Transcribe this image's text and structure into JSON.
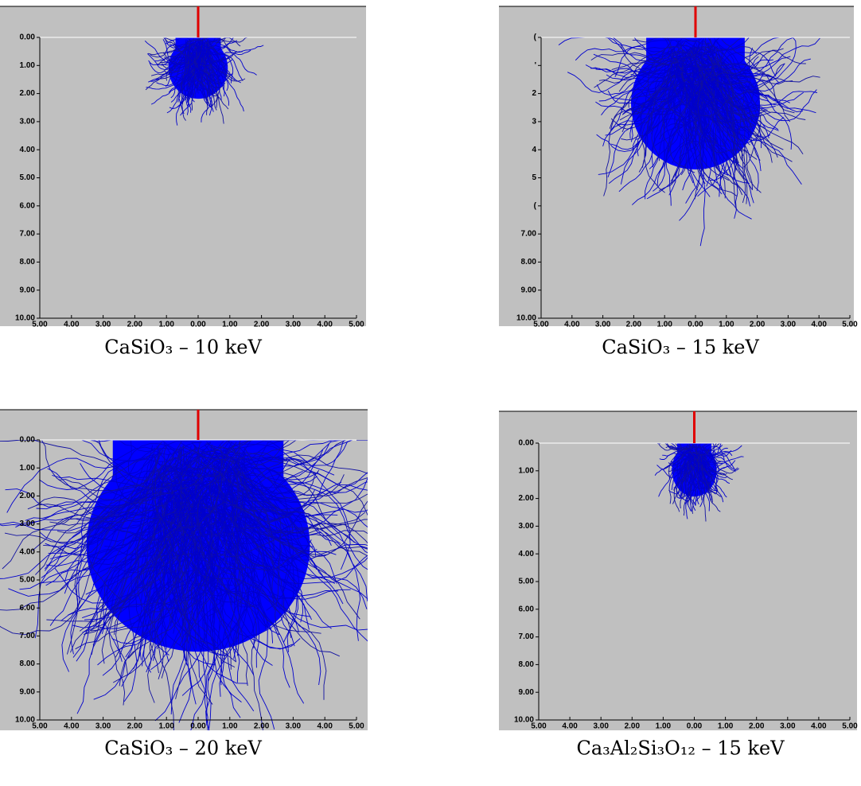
{
  "chart_data": [
    {
      "type": "trajectory",
      "caption": "CaSiO₃ – 10 keV",
      "xlim": [
        -5,
        5
      ],
      "xticks": [
        {
          "value": -5,
          "label": "5.00"
        },
        {
          "value": -4,
          "label": "4.00"
        },
        {
          "value": -3,
          "label": "3.00"
        },
        {
          "value": -2,
          "label": "2.00"
        },
        {
          "value": -1,
          "label": "1.00"
        },
        {
          "value": 0,
          "label": "0.00"
        },
        {
          "value": 1,
          "label": "1.00"
        },
        {
          "value": 2,
          "label": "2.00"
        },
        {
          "value": 3,
          "label": "3.00"
        },
        {
          "value": 4,
          "label": "4.00"
        },
        {
          "value": 5,
          "label": "5.00"
        }
      ],
      "ylim": [
        0,
        10
      ],
      "yticks": [
        {
          "value": 0,
          "label": "0.00"
        },
        {
          "value": 1,
          "label": "1.00"
        },
        {
          "value": 2,
          "label": "2.00"
        },
        {
          "value": 3,
          "label": "3.00"
        },
        {
          "value": 4,
          "label": "4.00"
        },
        {
          "value": 5,
          "label": "5.00"
        },
        {
          "value": 6,
          "label": "6.00"
        },
        {
          "value": 7,
          "label": "7.00"
        },
        {
          "value": 8,
          "label": "8.00"
        },
        {
          "value": 9,
          "label": "9.00"
        },
        {
          "value": 10,
          "label": "10.00"
        }
      ]
    },
    {
      "type": "trajectory",
      "caption": "CaSiO₃ – 15 keV",
      "xlim": [
        -5,
        5
      ],
      "xticks": [
        {
          "value": -5,
          "label": "5.00"
        },
        {
          "value": -4,
          "label": "4.00"
        },
        {
          "value": -3,
          "label": "3.00"
        },
        {
          "value": -2,
          "label": "2.00"
        },
        {
          "value": -1,
          "label": "1.00"
        },
        {
          "value": 0,
          "label": "0.00"
        },
        {
          "value": 1,
          "label": "1.00"
        },
        {
          "value": 2,
          "label": "2.00"
        },
        {
          "value": 3,
          "label": "3.00"
        },
        {
          "value": 4,
          "label": "4.00"
        },
        {
          "value": 5,
          "label": "5.00"
        }
      ],
      "ylim": [
        0,
        10
      ],
      "yticks": [
        {
          "value": 0,
          "label": "("
        },
        {
          "value": 1,
          "label": "'"
        },
        {
          "value": 2,
          "label": "2"
        },
        {
          "value": 3,
          "label": "3"
        },
        {
          "value": 4,
          "label": "4"
        },
        {
          "value": 5,
          "label": "5"
        },
        {
          "value": 6,
          "label": "("
        },
        {
          "value": 7,
          "label": "7.00"
        },
        {
          "value": 8,
          "label": "8.00"
        },
        {
          "value": 9,
          "label": "9.00"
        },
        {
          "value": 10,
          "label": "10.00"
        }
      ]
    },
    {
      "type": "trajectory",
      "caption": "CaSiO₃ – 20 keV",
      "xlim": [
        -5,
        5
      ],
      "xticks": [
        {
          "value": -5,
          "label": "5.00"
        },
        {
          "value": -4,
          "label": "4.00"
        },
        {
          "value": -3,
          "label": "3.00"
        },
        {
          "value": -2,
          "label": "2.00"
        },
        {
          "value": -1,
          "label": "1.00"
        },
        {
          "value": 0,
          "label": "0.00"
        },
        {
          "value": 1,
          "label": "1.00"
        },
        {
          "value": 2,
          "label": "2.00"
        },
        {
          "value": 3,
          "label": "3.00"
        },
        {
          "value": 4,
          "label": "4.00"
        },
        {
          "value": 5,
          "label": "5.00"
        }
      ],
      "ylim": [
        0,
        10
      ],
      "yticks": [
        {
          "value": 0,
          "label": "0.00"
        },
        {
          "value": 1,
          "label": "1.00"
        },
        {
          "value": 2,
          "label": "2.00"
        },
        {
          "value": 3,
          "label": "3.00"
        },
        {
          "value": 4,
          "label": "4.00"
        },
        {
          "value": 5,
          "label": "5.00"
        },
        {
          "value": 6,
          "label": "6.00"
        },
        {
          "value": 7,
          "label": "7.00"
        },
        {
          "value": 8,
          "label": "8.00"
        },
        {
          "value": 9,
          "label": "9.00"
        },
        {
          "value": 10,
          "label": "10.00"
        }
      ]
    },
    {
      "type": "trajectory",
      "caption": "Ca₃Al₂Si₃O₁₂ – 15 keV",
      "xlim": [
        -5,
        5
      ],
      "xticks": [
        {
          "value": -5,
          "label": "5.00"
        },
        {
          "value": -4,
          "label": "4.00"
        },
        {
          "value": -3,
          "label": "3.00"
        },
        {
          "value": -2,
          "label": "2.00"
        },
        {
          "value": -1,
          "label": "1.00"
        },
        {
          "value": 0,
          "label": "0.00"
        },
        {
          "value": 1,
          "label": "1.00"
        },
        {
          "value": 2,
          "label": "2.00"
        },
        {
          "value": 3,
          "label": "3.00"
        },
        {
          "value": 4,
          "label": "4.00"
        },
        {
          "value": 5,
          "label": "5.00"
        }
      ],
      "ylim": [
        0,
        10
      ],
      "yticks": [
        {
          "value": 0,
          "label": "0.00"
        },
        {
          "value": 1,
          "label": "1.00"
        },
        {
          "value": 2,
          "label": "2.00"
        },
        {
          "value": 3,
          "label": "3.00"
        },
        {
          "value": 4,
          "label": "4.00"
        },
        {
          "value": 5,
          "label": "5.00"
        },
        {
          "value": 6,
          "label": "6.00"
        },
        {
          "value": 7,
          "label": "7.00"
        },
        {
          "value": 8,
          "label": "8.00"
        },
        {
          "value": 9,
          "label": "9.00"
        },
        {
          "value": 10,
          "label": "10.00"
        }
      ]
    }
  ]
}
